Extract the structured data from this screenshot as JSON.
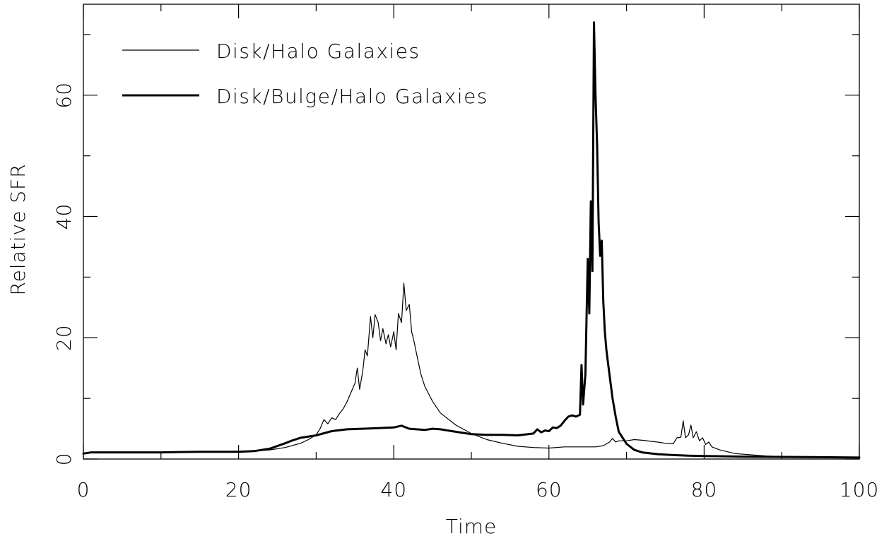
{
  "chart_data": {
    "type": "line",
    "title": "",
    "xlabel": "Time",
    "ylabel": "Relative SFR",
    "xlim": [
      0,
      100
    ],
    "ylim": [
      0,
      75
    ],
    "x_ticks": [
      0,
      20,
      40,
      60,
      80,
      100
    ],
    "y_ticks": [
      0,
      20,
      40,
      60
    ],
    "grid": false,
    "legend_position": "top-left",
    "series": [
      {
        "name": "Disk/Halo Galaxies",
        "color": "#000000",
        "style": "thin",
        "points": [
          [
            0,
            0.9
          ],
          [
            1,
            1.1
          ],
          [
            5,
            1.1
          ],
          [
            10,
            1.1
          ],
          [
            15,
            1.2
          ],
          [
            20,
            1.3
          ],
          [
            22,
            1.3
          ],
          [
            24,
            1.5
          ],
          [
            26,
            1.9
          ],
          [
            28,
            2.6
          ],
          [
            29,
            3.2
          ],
          [
            30,
            4.0
          ],
          [
            30.5,
            5.0
          ],
          [
            31,
            6.5
          ],
          [
            31.5,
            5.8
          ],
          [
            32,
            6.8
          ],
          [
            32.5,
            6.5
          ],
          [
            33,
            7.5
          ],
          [
            33.5,
            8.3
          ],
          [
            34,
            9.5
          ],
          [
            34.5,
            11.0
          ],
          [
            35,
            12.5
          ],
          [
            35.3,
            15.0
          ],
          [
            35.6,
            11.5
          ],
          [
            36,
            14.5
          ],
          [
            36.3,
            18.0
          ],
          [
            36.6,
            17.0
          ],
          [
            37,
            23.5
          ],
          [
            37.3,
            20.0
          ],
          [
            37.6,
            23.8
          ],
          [
            38,
            22.5
          ],
          [
            38.3,
            19.5
          ],
          [
            38.6,
            21.5
          ],
          [
            39,
            19.0
          ],
          [
            39.3,
            20.5
          ],
          [
            39.6,
            18.5
          ],
          [
            40,
            21.0
          ],
          [
            40.3,
            18.0
          ],
          [
            40.6,
            24.0
          ],
          [
            41,
            22.5
          ],
          [
            41.3,
            29.0
          ],
          [
            41.6,
            24.5
          ],
          [
            42,
            25.5
          ],
          [
            42.3,
            21.0
          ],
          [
            42.6,
            19.5
          ],
          [
            43,
            17.0
          ],
          [
            43.5,
            14.0
          ],
          [
            44,
            12.0
          ],
          [
            45,
            9.5
          ],
          [
            46,
            7.6
          ],
          [
            48,
            5.6
          ],
          [
            50,
            4.2
          ],
          [
            52,
            3.2
          ],
          [
            54,
            2.6
          ],
          [
            56,
            2.1
          ],
          [
            58,
            1.9
          ],
          [
            60,
            1.8
          ],
          [
            62,
            2.0
          ],
          [
            64,
            2.0
          ],
          [
            66,
            2.0
          ],
          [
            67,
            2.2
          ],
          [
            67.8,
            2.8
          ],
          [
            68.2,
            3.4
          ],
          [
            68.6,
            2.8
          ],
          [
            69,
            3.0
          ],
          [
            70,
            3.0
          ],
          [
            71,
            3.2
          ],
          [
            72,
            3.1
          ],
          [
            74,
            2.8
          ],
          [
            75,
            2.6
          ],
          [
            76,
            2.5
          ],
          [
            76.5,
            3.5
          ],
          [
            77,
            3.6
          ],
          [
            77.3,
            6.3
          ],
          [
            77.6,
            3.5
          ],
          [
            78,
            4.0
          ],
          [
            78.3,
            5.6
          ],
          [
            78.6,
            3.5
          ],
          [
            79,
            4.5
          ],
          [
            79.4,
            3.0
          ],
          [
            79.8,
            3.5
          ],
          [
            80.2,
            2.4
          ],
          [
            80.6,
            2.8
          ],
          [
            81,
            2.0
          ],
          [
            82,
            1.5
          ],
          [
            84,
            0.9
          ],
          [
            86,
            0.7
          ],
          [
            88,
            0.5
          ],
          [
            90,
            0.4
          ],
          [
            95,
            0.3
          ],
          [
            100,
            0.25
          ]
        ]
      },
      {
        "name": "Disk/Bulge/Halo Galaxies",
        "color": "#000000",
        "style": "thick",
        "points": [
          [
            0,
            0.9
          ],
          [
            1,
            1.1
          ],
          [
            5,
            1.1
          ],
          [
            10,
            1.1
          ],
          [
            15,
            1.2
          ],
          [
            20,
            1.2
          ],
          [
            22,
            1.3
          ],
          [
            24,
            1.7
          ],
          [
            26,
            2.6
          ],
          [
            27,
            3.1
          ],
          [
            28,
            3.5
          ],
          [
            30,
            3.9
          ],
          [
            32,
            4.6
          ],
          [
            34,
            4.9
          ],
          [
            36,
            5.0
          ],
          [
            38,
            5.1
          ],
          [
            40,
            5.2
          ],
          [
            41,
            5.5
          ],
          [
            42,
            5.0
          ],
          [
            44,
            4.8
          ],
          [
            45,
            5.0
          ],
          [
            46,
            4.9
          ],
          [
            48,
            4.5
          ],
          [
            50,
            4.1
          ],
          [
            52,
            4.0
          ],
          [
            54,
            4.0
          ],
          [
            56,
            3.9
          ],
          [
            58,
            4.2
          ],
          [
            58.5,
            4.9
          ],
          [
            59,
            4.4
          ],
          [
            59.5,
            4.7
          ],
          [
            60,
            4.6
          ],
          [
            60.5,
            5.2
          ],
          [
            61,
            5.1
          ],
          [
            61.5,
            5.5
          ],
          [
            62,
            6.3
          ],
          [
            62.5,
            7.0
          ],
          [
            63,
            7.2
          ],
          [
            63.5,
            7.0
          ],
          [
            64,
            7.3
          ],
          [
            64.2,
            15.5
          ],
          [
            64.4,
            9.0
          ],
          [
            64.7,
            14.0
          ],
          [
            65,
            33.0
          ],
          [
            65.2,
            24.0
          ],
          [
            65.4,
            42.5
          ],
          [
            65.6,
            31.0
          ],
          [
            65.8,
            72.0
          ],
          [
            66,
            60.0
          ],
          [
            66.2,
            52.0
          ],
          [
            66.4,
            39.0
          ],
          [
            66.6,
            33.5
          ],
          [
            66.8,
            36.0
          ],
          [
            67,
            26.0
          ],
          [
            67.2,
            21.0
          ],
          [
            67.4,
            18.0
          ],
          [
            67.6,
            16.0
          ],
          [
            67.8,
            14.0
          ],
          [
            68.2,
            10.0
          ],
          [
            68.6,
            7.0
          ],
          [
            69,
            4.5
          ],
          [
            70,
            2.5
          ],
          [
            71,
            1.5
          ],
          [
            72,
            1.1
          ],
          [
            74,
            0.8
          ],
          [
            76,
            0.65
          ],
          [
            78,
            0.55
          ],
          [
            80,
            0.5
          ],
          [
            85,
            0.4
          ],
          [
            90,
            0.35
          ],
          [
            95,
            0.3
          ],
          [
            100,
            0.25
          ]
        ]
      }
    ]
  }
}
